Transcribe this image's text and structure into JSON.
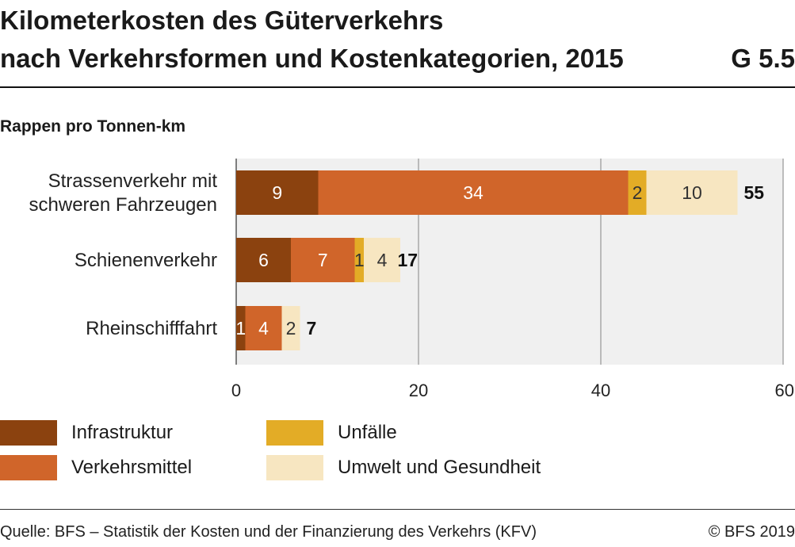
{
  "title": {
    "line1": "Kilometerkosten des Güterverkehrs",
    "line2": "nach Verkehrsformen und Kostenkategorien, 2015",
    "code": "G 5.5"
  },
  "unit_label": "Rappen pro Tonnen-km",
  "legend": [
    {
      "label": "Infrastruktur",
      "color": "#8b420f"
    },
    {
      "label": "Unfälle",
      "color": "#e3ac26"
    },
    {
      "label": "Verkehrsmittel",
      "color": "#d0652a"
    },
    {
      "label": "Umwelt und Gesundheit",
      "color": "#f7e6c1"
    }
  ],
  "footer": {
    "source": "Quelle: BFS – Statistik der Kosten und der Finanzierung des Verkehrs (KFV)",
    "copyright": "© BFS 2019"
  },
  "chart_data": {
    "type": "bar",
    "orientation": "horizontal",
    "stacked": true,
    "categories": [
      "Strassenverkehr mit schweren Fahrzeugen",
      "Schienenverkehr",
      "Rheinschifffahrt"
    ],
    "category_lines": [
      [
        "Strassenverkehr mit",
        "schweren Fahrzeugen"
      ],
      [
        "Schienenverkehr"
      ],
      [
        "Rheinschifffahrt"
      ]
    ],
    "series": [
      {
        "name": "Infrastruktur",
        "values": [
          9,
          6,
          1
        ],
        "color": "#8b420f",
        "label_color": "#ffffff"
      },
      {
        "name": "Verkehrsmittel",
        "values": [
          34,
          7,
          4
        ],
        "color": "#d0652a",
        "label_color": "#ffffff"
      },
      {
        "name": "Unfälle",
        "values": [
          2,
          1,
          0
        ],
        "color": "#e3ac26",
        "label_color": "#333333"
      },
      {
        "name": "Umwelt und Gesundheit",
        "values": [
          10,
          4,
          2
        ],
        "color": "#f7e6c1",
        "label_color": "#333333"
      }
    ],
    "totals": [
      55,
      17,
      7
    ],
    "xlim": [
      0,
      60
    ],
    "xticks": [
      0,
      20,
      40,
      60
    ],
    "grid": true,
    "legend_position": "bottom"
  }
}
